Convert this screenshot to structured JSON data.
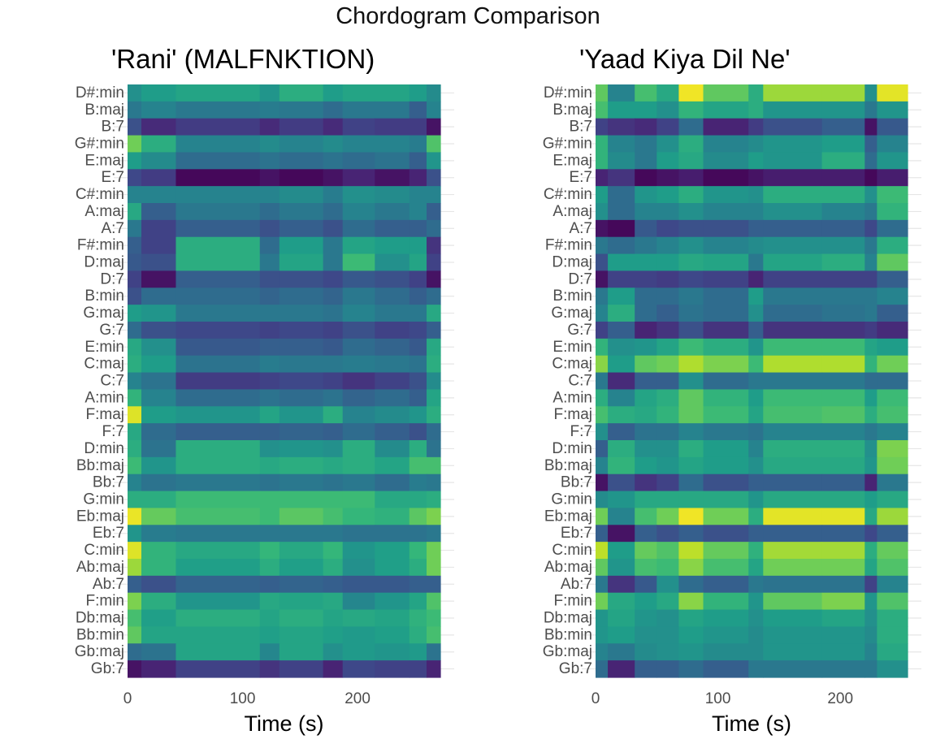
{
  "suptitle": "Chordogram Comparison",
  "colors": {
    "grid": "#e6e6e6",
    "tick_text": "#4d4d4d",
    "axis_text": "#000000",
    "viridis": [
      "#440154",
      "#482878",
      "#3e4989",
      "#31688e",
      "#26828e",
      "#1f9e89",
      "#35b779",
      "#6ece58",
      "#b5de2b",
      "#fde725"
    ]
  },
  "chart_data": [
    {
      "type": "heatmap",
      "title": "'Rani' (MALFNKTION)",
      "xlabel": "Time (s)",
      "ylabel": "",
      "xlim": [
        0,
        272
      ],
      "x_ticks": [
        0,
        100,
        200
      ],
      "x_tick_labels": [
        "0",
        "100",
        "200"
      ],
      "y_categories": [
        "D#:min",
        "B:maj",
        "B:7",
        "G#:min",
        "E:maj",
        "E:7",
        "C#:min",
        "A:maj",
        "A:7",
        "F#:min",
        "D:maj",
        "D:7",
        "B:min",
        "G:maj",
        "G:7",
        "E:min",
        "C:maj",
        "C:7",
        "A:min",
        "F:maj",
        "F:7",
        "D:min",
        "Bb:maj",
        "Bb:7",
        "G:min",
        "Eb:maj",
        "Eb:7",
        "C:min",
        "Ab:maj",
        "Ab:7",
        "F:min",
        "Db:maj",
        "Bb:min",
        "Gb:maj",
        "Gb:7"
      ],
      "time_bins": [
        0,
        12,
        42,
        115,
        132,
        170,
        187,
        215,
        245,
        260,
        272
      ],
      "values": [
        [
          0.5,
          0.55,
          0.58,
          0.52,
          0.62,
          0.55,
          0.58,
          0.58,
          0.55,
          0.48
        ],
        [
          0.4,
          0.45,
          0.4,
          0.42,
          0.4,
          0.35,
          0.4,
          0.4,
          0.3,
          0.45
        ],
        [
          0.25,
          0.12,
          0.18,
          0.12,
          0.18,
          0.12,
          0.2,
          0.18,
          0.18,
          0.05
        ],
        [
          0.78,
          0.62,
          0.45,
          0.48,
          0.45,
          0.48,
          0.45,
          0.45,
          0.42,
          0.72
        ],
        [
          0.55,
          0.48,
          0.35,
          0.38,
          0.35,
          0.38,
          0.35,
          0.38,
          0.3,
          0.52
        ],
        [
          0.22,
          0.18,
          0.02,
          0.05,
          0.02,
          0.05,
          0.1,
          0.05,
          0.1,
          0.25
        ],
        [
          0.45,
          0.45,
          0.45,
          0.45,
          0.48,
          0.42,
          0.5,
          0.48,
          0.45,
          0.45
        ],
        [
          0.6,
          0.3,
          0.4,
          0.35,
          0.4,
          0.35,
          0.45,
          0.4,
          0.45,
          0.3
        ],
        [
          0.4,
          0.2,
          0.3,
          0.25,
          0.3,
          0.25,
          0.35,
          0.3,
          0.3,
          0.35
        ],
        [
          0.3,
          0.2,
          0.62,
          0.35,
          0.55,
          0.4,
          0.58,
          0.55,
          0.55,
          0.15
        ],
        [
          0.28,
          0.25,
          0.62,
          0.4,
          0.58,
          0.4,
          0.68,
          0.5,
          0.58,
          0.2
        ],
        [
          0.2,
          0.05,
          0.3,
          0.25,
          0.25,
          0.22,
          0.28,
          0.25,
          0.2,
          0.05
        ],
        [
          0.25,
          0.35,
          0.35,
          0.32,
          0.35,
          0.32,
          0.4,
          0.35,
          0.3,
          0.35
        ],
        [
          0.55,
          0.52,
          0.4,
          0.4,
          0.4,
          0.38,
          0.45,
          0.4,
          0.4,
          0.6
        ],
        [
          0.35,
          0.25,
          0.22,
          0.2,
          0.22,
          0.2,
          0.25,
          0.2,
          0.22,
          0.3
        ],
        [
          0.6,
          0.5,
          0.28,
          0.3,
          0.3,
          0.28,
          0.35,
          0.32,
          0.28,
          0.6
        ],
        [
          0.62,
          0.55,
          0.38,
          0.42,
          0.4,
          0.4,
          0.42,
          0.4,
          0.38,
          0.62
        ],
        [
          0.45,
          0.38,
          0.18,
          0.2,
          0.22,
          0.2,
          0.15,
          0.2,
          0.25,
          0.48
        ],
        [
          0.65,
          0.45,
          0.35,
          0.38,
          0.35,
          0.38,
          0.32,
          0.35,
          0.3,
          0.58
        ],
        [
          0.95,
          0.55,
          0.52,
          0.58,
          0.52,
          0.62,
          0.45,
          0.48,
          0.52,
          0.62
        ],
        [
          0.6,
          0.35,
          0.3,
          0.3,
          0.32,
          0.3,
          0.35,
          0.3,
          0.25,
          0.35
        ],
        [
          0.62,
          0.38,
          0.62,
          0.5,
          0.52,
          0.5,
          0.62,
          0.48,
          0.62,
          0.38
        ],
        [
          0.68,
          0.52,
          0.62,
          0.6,
          0.62,
          0.6,
          0.62,
          0.58,
          0.7,
          0.7
        ],
        [
          0.45,
          0.38,
          0.4,
          0.38,
          0.4,
          0.38,
          0.4,
          0.35,
          0.42,
          0.4
        ],
        [
          0.62,
          0.62,
          0.68,
          0.68,
          0.68,
          0.68,
          0.68,
          0.6,
          0.6,
          0.62
        ],
        [
          0.97,
          0.76,
          0.7,
          0.68,
          0.74,
          0.7,
          0.66,
          0.64,
          0.74,
          0.8
        ],
        [
          0.52,
          0.42,
          0.4,
          0.4,
          0.4,
          0.4,
          0.38,
          0.38,
          0.38,
          0.4
        ],
        [
          0.95,
          0.65,
          0.6,
          0.66,
          0.6,
          0.66,
          0.52,
          0.56,
          0.66,
          0.78
        ],
        [
          0.85,
          0.65,
          0.56,
          0.62,
          0.56,
          0.62,
          0.5,
          0.56,
          0.62,
          0.78
        ],
        [
          0.3,
          0.25,
          0.32,
          0.3,
          0.32,
          0.3,
          0.28,
          0.28,
          0.3,
          0.3
        ],
        [
          0.8,
          0.62,
          0.52,
          0.6,
          0.58,
          0.6,
          0.46,
          0.52,
          0.58,
          0.72
        ],
        [
          0.7,
          0.56,
          0.62,
          0.58,
          0.62,
          0.58,
          0.6,
          0.58,
          0.64,
          0.68
        ],
        [
          0.75,
          0.58,
          0.58,
          0.56,
          0.58,
          0.56,
          0.54,
          0.56,
          0.62,
          0.7
        ],
        [
          0.35,
          0.38,
          0.58,
          0.46,
          0.58,
          0.5,
          0.54,
          0.52,
          0.54,
          0.38
        ],
        [
          0.05,
          0.1,
          0.2,
          0.15,
          0.2,
          0.1,
          0.22,
          0.2,
          0.2,
          0.1
        ]
      ]
    },
    {
      "type": "heatmap",
      "title": "'Yaad Kiya Dil Ne'",
      "xlabel": "Time (s)",
      "ylabel": "",
      "xlim": [
        0,
        255
      ],
      "x_ticks": [
        0,
        100,
        200
      ],
      "x_tick_labels": [
        "0",
        "100",
        "200"
      ],
      "y_categories": [
        "D#:min",
        "B:maj",
        "B:7",
        "G#:min",
        "E:maj",
        "E:7",
        "C#:min",
        "A:maj",
        "A:7",
        "F#:min",
        "D:maj",
        "D:7",
        "B:min",
        "G:maj",
        "G:7",
        "E:min",
        "C:maj",
        "C:7",
        "A:min",
        "F:maj",
        "F:7",
        "D:min",
        "Bb:maj",
        "Bb:7",
        "G:min",
        "Eb:maj",
        "Eb:7",
        "C:min",
        "Ab:maj",
        "Ab:7",
        "F:min",
        "Db:maj",
        "Bb:min",
        "Gb:maj",
        "Gb:7"
      ],
      "time_bins": [
        0,
        10,
        32,
        50,
        68,
        88,
        125,
        137,
        185,
        220,
        230,
        255
      ],
      "values": [
        [
          0.75,
          0.45,
          0.7,
          0.6,
          0.98,
          0.75,
          0.62,
          0.85,
          0.85,
          0.5,
          0.96
        ],
        [
          0.7,
          0.55,
          0.55,
          0.5,
          0.65,
          0.58,
          0.62,
          0.52,
          0.52,
          0.4,
          0.52
        ],
        [
          0.2,
          0.15,
          0.12,
          0.2,
          0.35,
          0.1,
          0.18,
          0.25,
          0.3,
          0.05,
          0.28
        ],
        [
          0.65,
          0.45,
          0.4,
          0.5,
          0.62,
          0.45,
          0.48,
          0.52,
          0.55,
          0.3,
          0.45
        ],
        [
          0.65,
          0.48,
          0.4,
          0.55,
          0.6,
          0.48,
          0.55,
          0.52,
          0.62,
          0.35,
          0.52
        ],
        [
          0.1,
          0.15,
          0.02,
          0.05,
          0.08,
          0.02,
          0.05,
          0.08,
          0.08,
          0.02,
          0.08
        ],
        [
          0.55,
          0.35,
          0.52,
          0.55,
          0.62,
          0.52,
          0.5,
          0.62,
          0.62,
          0.5,
          0.68
        ],
        [
          0.5,
          0.35,
          0.45,
          0.45,
          0.5,
          0.45,
          0.45,
          0.5,
          0.45,
          0.4,
          0.65
        ],
        [
          0.05,
          0.02,
          0.28,
          0.22,
          0.25,
          0.25,
          0.3,
          0.3,
          0.3,
          0.22,
          0.35
        ],
        [
          0.4,
          0.35,
          0.4,
          0.45,
          0.5,
          0.45,
          0.48,
          0.5,
          0.5,
          0.4,
          0.62
        ],
        [
          0.25,
          0.55,
          0.55,
          0.55,
          0.6,
          0.58,
          0.4,
          0.58,
          0.62,
          0.45,
          0.75
        ],
        [
          0.05,
          0.2,
          0.2,
          0.18,
          0.22,
          0.2,
          0.1,
          0.2,
          0.2,
          0.2,
          0.3
        ],
        [
          0.4,
          0.55,
          0.35,
          0.35,
          0.4,
          0.35,
          0.55,
          0.4,
          0.4,
          0.4,
          0.45
        ],
        [
          0.45,
          0.62,
          0.35,
          0.3,
          0.38,
          0.35,
          0.5,
          0.35,
          0.38,
          0.4,
          0.3
        ],
        [
          0.2,
          0.3,
          0.1,
          0.15,
          0.25,
          0.15,
          0.3,
          0.15,
          0.15,
          0.18,
          0.12
        ],
        [
          0.65,
          0.5,
          0.52,
          0.58,
          0.68,
          0.62,
          0.52,
          0.68,
          0.68,
          0.58,
          0.55
        ],
        [
          0.82,
          0.55,
          0.75,
          0.78,
          0.88,
          0.8,
          0.68,
          0.88,
          0.88,
          0.65,
          0.78
        ],
        [
          0.4,
          0.12,
          0.3,
          0.3,
          0.5,
          0.35,
          0.4,
          0.4,
          0.4,
          0.35,
          0.35
        ],
        [
          0.62,
          0.45,
          0.58,
          0.62,
          0.75,
          0.65,
          0.55,
          0.68,
          0.68,
          0.55,
          0.68
        ],
        [
          0.7,
          0.62,
          0.6,
          0.65,
          0.75,
          0.68,
          0.58,
          0.7,
          0.72,
          0.62,
          0.7
        ],
        [
          0.5,
          0.3,
          0.38,
          0.38,
          0.45,
          0.4,
          0.38,
          0.45,
          0.45,
          0.4,
          0.45
        ],
        [
          0.3,
          0.62,
          0.5,
          0.5,
          0.62,
          0.55,
          0.45,
          0.62,
          0.62,
          0.5,
          0.8
        ],
        [
          0.45,
          0.65,
          0.55,
          0.52,
          0.58,
          0.55,
          0.5,
          0.6,
          0.6,
          0.52,
          0.78
        ],
        [
          0.05,
          0.25,
          0.15,
          0.2,
          0.35,
          0.25,
          0.3,
          0.3,
          0.3,
          0.1,
          0.4
        ],
        [
          0.48,
          0.52,
          0.6,
          0.6,
          0.6,
          0.6,
          0.52,
          0.6,
          0.6,
          0.55,
          0.6
        ],
        [
          0.78,
          0.45,
          0.7,
          0.78,
          0.98,
          0.78,
          0.62,
          0.96,
          0.96,
          0.6,
          0.85
        ],
        [
          0.3,
          0.05,
          0.3,
          0.25,
          0.3,
          0.25,
          0.3,
          0.3,
          0.3,
          0.22,
          0.3
        ],
        [
          0.9,
          0.55,
          0.76,
          0.72,
          0.9,
          0.76,
          0.64,
          0.86,
          0.86,
          0.62,
          0.76
        ],
        [
          0.75,
          0.52,
          0.7,
          0.68,
          0.82,
          0.7,
          0.58,
          0.78,
          0.78,
          0.58,
          0.72
        ],
        [
          0.4,
          0.15,
          0.28,
          0.5,
          0.35,
          0.3,
          0.4,
          0.38,
          0.38,
          0.2,
          0.45
        ],
        [
          0.78,
          0.6,
          0.55,
          0.6,
          0.82,
          0.65,
          0.52,
          0.75,
          0.8,
          0.52,
          0.72
        ],
        [
          0.52,
          0.58,
          0.52,
          0.5,
          0.58,
          0.55,
          0.5,
          0.55,
          0.58,
          0.5,
          0.62
        ],
        [
          0.52,
          0.55,
          0.5,
          0.5,
          0.55,
          0.52,
          0.48,
          0.52,
          0.52,
          0.48,
          0.62
        ],
        [
          0.45,
          0.4,
          0.48,
          0.5,
          0.52,
          0.48,
          0.48,
          0.52,
          0.52,
          0.45,
          0.6
        ],
        [
          0.35,
          0.1,
          0.3,
          0.3,
          0.35,
          0.3,
          0.4,
          0.4,
          0.4,
          0.4,
          0.5
        ]
      ]
    }
  ]
}
